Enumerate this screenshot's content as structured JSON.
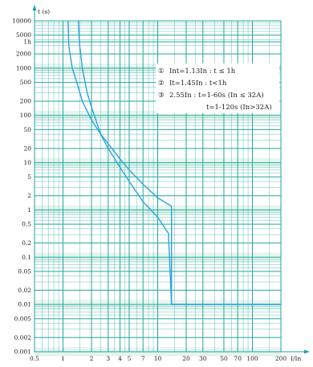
{
  "chart_data": {
    "type": "line",
    "xlabel": "I/In",
    "ylabel": "t (s)",
    "x_scale": "log",
    "y_scale": "log",
    "xlim": [
      0.5,
      200
    ],
    "ylim": [
      0.001,
      10000
    ],
    "grid": true,
    "x_ticks": [
      {
        "value": 0.5,
        "label": "0.5"
      },
      {
        "value": 1,
        "label": "1"
      },
      {
        "value": 2,
        "label": "2"
      },
      {
        "value": 3,
        "label": "3"
      },
      {
        "value": 4,
        "label": "4"
      },
      {
        "value": 5,
        "label": "5"
      },
      {
        "value": 7,
        "label": "7"
      },
      {
        "value": 10,
        "label": "10"
      },
      {
        "value": 20,
        "label": "20"
      },
      {
        "value": 30,
        "label": "30"
      },
      {
        "value": 50,
        "label": "50"
      },
      {
        "value": 70,
        "label": "70"
      },
      {
        "value": 100,
        "label": "100"
      },
      {
        "value": 200,
        "label": "200"
      }
    ],
    "y_ticks": [
      {
        "value": 10000,
        "label": "10000"
      },
      {
        "value": 5000,
        "label": "5000"
      },
      {
        "value": 3600,
        "label": "1h"
      },
      {
        "value": 2000,
        "label": "2000"
      },
      {
        "value": 1000,
        "label": "1000"
      },
      {
        "value": 500,
        "label": "500"
      },
      {
        "value": 200,
        "label": "200"
      },
      {
        "value": 100,
        "label": "100"
      },
      {
        "value": 50,
        "label": "50"
      },
      {
        "value": 20,
        "label": "20"
      },
      {
        "value": 10,
        "label": "10"
      },
      {
        "value": 5,
        "label": "5"
      },
      {
        "value": 2,
        "label": "2"
      },
      {
        "value": 1,
        "label": "1"
      },
      {
        "value": 0.5,
        "label": "0.5"
      },
      {
        "value": 0.2,
        "label": "0.2"
      },
      {
        "value": 0.1,
        "label": "0.1"
      },
      {
        "value": 0.05,
        "label": "0.05"
      },
      {
        "value": 0.02,
        "label": "0.02"
      },
      {
        "value": 0.01,
        "label": "0.01"
      },
      {
        "value": 0.005,
        "label": "0.005"
      },
      {
        "value": 0.002,
        "label": "0.002"
      },
      {
        "value": 0.001,
        "label": "0.001"
      }
    ],
    "series": [
      {
        "color": "#29a3dc",
        "points": [
          [
            1.13,
            10000
          ],
          [
            1.15,
            3000
          ],
          [
            1.25,
            1000
          ],
          [
            1.4,
            500
          ],
          [
            1.6,
            200
          ],
          [
            2,
            80
          ],
          [
            2.5,
            40
          ],
          [
            3,
            25
          ],
          [
            4,
            12
          ],
          [
            5,
            7
          ],
          [
            7,
            3.5
          ],
          [
            10,
            1.8
          ],
          [
            14,
            1.2
          ],
          [
            14,
            0.01
          ],
          [
            200,
            0.01
          ]
        ]
      },
      {
        "color": "#29a3dc",
        "points": [
          [
            1.45,
            10000
          ],
          [
            1.5,
            3000
          ],
          [
            1.6,
            1000
          ],
          [
            1.8,
            300
          ],
          [
            2,
            150
          ],
          [
            2.5,
            40
          ],
          [
            3,
            20
          ],
          [
            4,
            8
          ],
          [
            5,
            4
          ],
          [
            7,
            1.5
          ],
          [
            10,
            0.7
          ],
          [
            13,
            0.32
          ],
          [
            14,
            0.01
          ],
          [
            200,
            0.01
          ]
        ]
      }
    ],
    "annotations": [
      {
        "label": "①",
        "text": "Int=1.13In : t ≤ 1h"
      },
      {
        "label": "②",
        "text": "It=1.45In : t<1h"
      },
      {
        "label": "③",
        "text": "2.55In : t=1-60s (In ≤ 32A)"
      },
      {
        "label": "",
        "text": "t=1-120s (In>32A)"
      }
    ]
  }
}
